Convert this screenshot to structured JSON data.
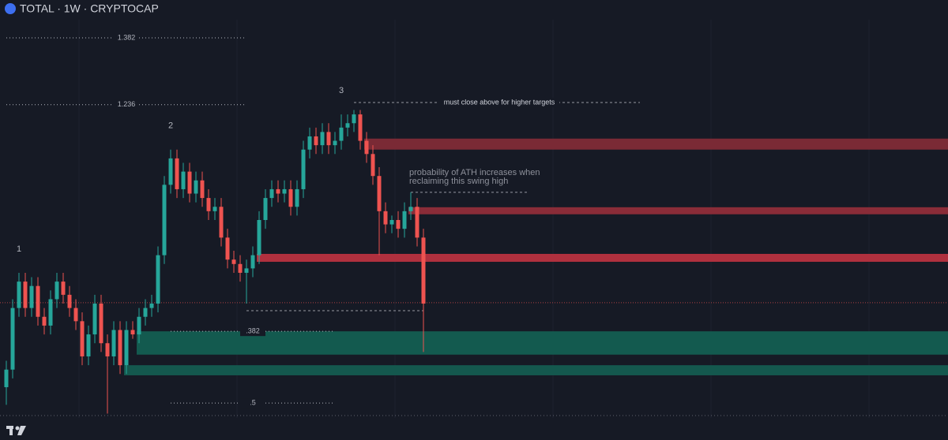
{
  "chart_data": {
    "type": "candlestick",
    "title": "TOTAL · 1W · CRYPTOCAP",
    "ylim": [
      0,
      100
    ],
    "colors": {
      "up": "#26a69a",
      "down": "#ef5350"
    },
    "open": [
      12,
      16,
      30,
      36,
      30,
      35,
      28,
      26,
      32,
      36,
      33,
      30,
      27,
      19,
      24,
      31,
      22,
      19,
      25,
      17,
      25,
      24,
      28,
      30,
      31,
      42,
      58,
      64,
      57,
      61,
      56,
      59,
      55,
      52,
      53,
      46,
      41,
      40,
      38,
      39,
      42,
      50,
      55,
      57,
      56,
      57,
      53,
      57,
      66,
      69,
      67,
      70,
      67,
      68,
      71,
      72,
      74,
      68,
      65,
      60,
      52,
      49,
      50,
      48,
      52,
      53,
      46
    ],
    "high": [
      18,
      32,
      38,
      38,
      37,
      37,
      30,
      34,
      38,
      38,
      35,
      32,
      29,
      26,
      33,
      33,
      24,
      27,
      27,
      27,
      27,
      30,
      32,
      33,
      44,
      60,
      66,
      66,
      63,
      63,
      61,
      61,
      57,
      55,
      55,
      48,
      43,
      42,
      41,
      44,
      52,
      57,
      59,
      59,
      59,
      59,
      59,
      68,
      71,
      71,
      72,
      72,
      70,
      74,
      74,
      75,
      75,
      70,
      67,
      62,
      54,
      51,
      52,
      54,
      56,
      55,
      48
    ],
    "low": [
      8,
      14,
      28,
      28,
      28,
      26,
      24,
      24,
      30,
      31,
      28,
      25,
      17,
      17,
      22,
      20,
      6,
      17,
      15,
      15,
      23,
      22,
      26,
      28,
      29,
      40,
      56,
      55,
      55,
      54,
      54,
      53,
      50,
      50,
      44,
      39,
      38,
      36,
      31,
      37,
      40,
      48,
      53,
      54,
      54,
      51,
      51,
      55,
      64,
      65,
      65,
      65,
      65,
      66,
      69,
      70,
      66,
      63,
      58,
      42,
      47,
      47,
      46,
      46,
      50,
      44,
      20
    ],
    "close": [
      16,
      30,
      36,
      30,
      35,
      28,
      26,
      32,
      36,
      33,
      30,
      27,
      19,
      24,
      31,
      22,
      19,
      25,
      17,
      25,
      24,
      28,
      30,
      31,
      42,
      58,
      64,
      57,
      61,
      56,
      59,
      55,
      52,
      53,
      46,
      41,
      40,
      38,
      39,
      42,
      50,
      55,
      57,
      56,
      57,
      53,
      57,
      66,
      69,
      67,
      70,
      67,
      68,
      71,
      72,
      74,
      68,
      65,
      60,
      52,
      49,
      50,
      48,
      52,
      53,
      46,
      31
    ],
    "zones": [
      {
        "start": 57,
        "high": 68.5,
        "low": 66,
        "color": "#7a2a35"
      },
      {
        "start": 64,
        "high": 52.9,
        "low": 51.3,
        "color": "#8a2c38"
      },
      {
        "start": 40,
        "high": 42.3,
        "low": 40.5,
        "color": "#b0303e"
      },
      {
        "start": 21,
        "high": 24.7,
        "low": 19.4,
        "color": "#135a4f"
      },
      {
        "start": 19,
        "high": 17,
        "low": 14.7,
        "color": "#14584e"
      }
    ],
    "fib_levels": [
      {
        "label": "1.382",
        "value": 91.4,
        "from": 0,
        "to": 38
      },
      {
        "label": "1.236",
        "value": 76.2,
        "from": 0,
        "to": 38
      },
      {
        "label": ".382",
        "value": 24.7,
        "from": 26,
        "to": 52
      },
      {
        "label": ".5",
        "value": 8.4,
        "from": 26,
        "to": 52
      }
    ],
    "waves": [
      {
        "label": "1",
        "index": 2
      },
      {
        "label": "2",
        "index": 26
      },
      {
        "label": "3",
        "index": 53
      }
    ],
    "annotations": [
      {
        "text": [
          "must close above for higher targets"
        ],
        "value": 76.7,
        "from": 55
      },
      {
        "text": [
          "probability of ATH increases when",
          "reclaiming this swing high"
        ],
        "value": 56.3,
        "from": 64
      }
    ],
    "swing_low": {
      "value": 29.4,
      "from": 38,
      "to": 66
    },
    "last_price": 31.2
  }
}
